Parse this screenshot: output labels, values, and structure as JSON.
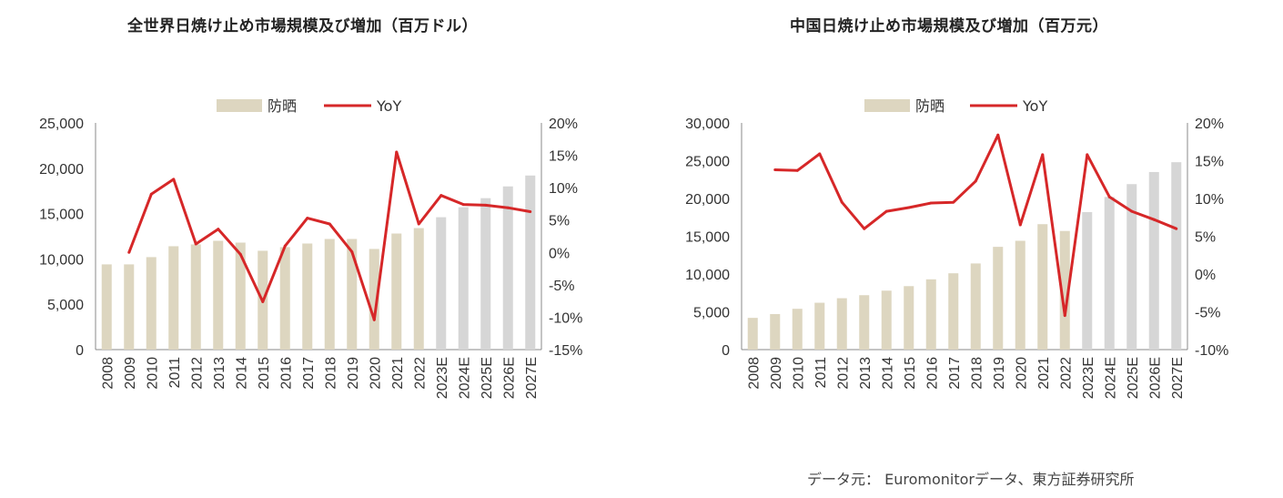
{
  "chart_data": [
    {
      "type": "bar+line",
      "title": "全世界日焼け止め市場規模及び増加（百万ドル）",
      "categories": [
        "2008",
        "2009",
        "2010",
        "2011",
        "2012",
        "2013",
        "2014",
        "2015",
        "2016",
        "2017",
        "2018",
        "2019",
        "2020",
        "2021",
        "2022",
        "2023E",
        "2024E",
        "2025E",
        "2026E",
        "2027E"
      ],
      "forecast_start_index": 15,
      "series": [
        {
          "name": "防晒",
          "kind": "bar",
          "axis": "left",
          "values": [
            9400,
            9400,
            10200,
            11400,
            11600,
            12000,
            11800,
            10900,
            11300,
            11700,
            12200,
            12200,
            11100,
            12800,
            13400,
            14600,
            15700,
            16700,
            18000,
            19200
          ],
          "colors": {
            "actual": "#ddd6c0",
            "forecast": "#d6d6d6"
          }
        },
        {
          "name": "YoY",
          "kind": "line",
          "axis": "right",
          "color": "#d62728",
          "values": [
            null,
            0.0,
            9.0,
            11.3,
            1.3,
            3.6,
            -0.3,
            -7.6,
            1.0,
            5.3,
            4.4,
            0.1,
            -10.4,
            15.5,
            4.4,
            8.8,
            7.4,
            7.3,
            6.9,
            6.3
          ]
        }
      ],
      "left_axis": {
        "min": 0,
        "max": 25000,
        "step": 5000,
        "tick_labels": [
          "0",
          "5,000",
          "10,000",
          "15,000",
          "20,000",
          "25,000"
        ]
      },
      "right_axis": {
        "min": -15,
        "max": 20,
        "step": 5,
        "tick_labels": [
          "-15%",
          "-10%",
          "-5%",
          "0%",
          "5%",
          "10%",
          "15%",
          "20%"
        ]
      },
      "legend": {
        "position": "top",
        "labels": [
          "防晒",
          "YoY"
        ]
      }
    },
    {
      "type": "bar+line",
      "title": "中国日焼け止め市場規模及び増加（百万元）",
      "categories": [
        "2008",
        "2009",
        "2010",
        "2011",
        "2012",
        "2013",
        "2014",
        "2015",
        "2016",
        "2017",
        "2018",
        "2019",
        "2020",
        "2021",
        "2022",
        "2023E",
        "2024E",
        "2025E",
        "2026E",
        "2027E"
      ],
      "forecast_start_index": 15,
      "series": [
        {
          "name": "防晒",
          "kind": "bar",
          "axis": "left",
          "values": [
            4200,
            4700,
            5400,
            6200,
            6800,
            7200,
            7800,
            8400,
            9300,
            10100,
            11400,
            13600,
            14400,
            16600,
            15700,
            18200,
            20200,
            21900,
            23500,
            24800
          ],
          "colors": {
            "actual": "#ddd6c0",
            "forecast": "#d6d6d6"
          }
        },
        {
          "name": "YoY",
          "kind": "line",
          "axis": "right",
          "color": "#d62728",
          "values": [
            null,
            13.8,
            13.7,
            15.9,
            9.5,
            6.0,
            8.3,
            8.8,
            9.4,
            9.5,
            12.3,
            18.4,
            6.5,
            15.8,
            -5.5,
            15.8,
            10.2,
            8.3,
            7.2,
            6.0
          ]
        }
      ],
      "left_axis": {
        "min": 0,
        "max": 30000,
        "step": 5000,
        "tick_labels": [
          "0",
          "5,000",
          "10,000",
          "15,000",
          "20,000",
          "25,000",
          "30,000"
        ]
      },
      "right_axis": {
        "min": -10,
        "max": 20,
        "step": 5,
        "tick_labels": [
          "-10%",
          "-5%",
          "0%",
          "5%",
          "10%",
          "15%",
          "20%"
        ]
      },
      "legend": {
        "position": "top",
        "labels": [
          "防晒",
          "YoY"
        ]
      }
    }
  ],
  "source_note": "データ元： Euromonitorデータ、東方証券研究所"
}
